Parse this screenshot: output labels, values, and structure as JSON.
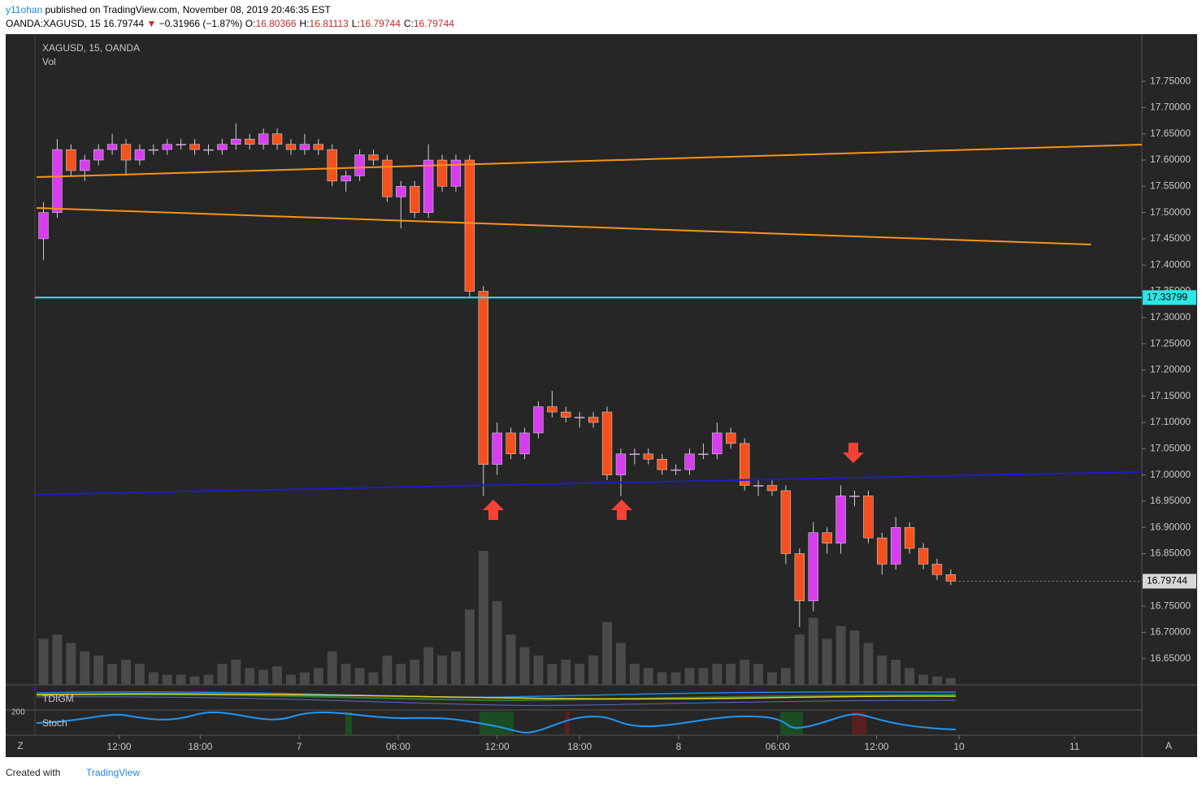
{
  "header": {
    "author": "y11ohan",
    "published": "published on TradingView.com, November 08, 2019 20:46:35 EST",
    "symbol": "OANDA:XAGUSD, 15",
    "last": "16.79744",
    "change": "−0.31966 (−1.87%)",
    "ohlc": [
      {
        "label": "O:",
        "value": "16.80366"
      },
      {
        "label": "H:",
        "value": "16.81113"
      },
      {
        "label": "L:",
        "value": "16.79744"
      },
      {
        "label": "C:",
        "value": "16.79744"
      }
    ]
  },
  "chart_data": {
    "type": "candlestick",
    "title": "XAGUSD, 15, OANDA",
    "volume_label": "Vol",
    "xlim": [
      -2.25,
      80.4
    ],
    "xticks": [
      {
        "value": 6,
        "label": "12:00"
      },
      {
        "value": 11.9,
        "label": "18:00"
      },
      {
        "value": 19.1,
        "label": "7"
      },
      {
        "value": 26.3,
        "label": "06:00"
      },
      {
        "value": 33.5,
        "label": "12:00"
      },
      {
        "value": 39.5,
        "label": "18:00"
      },
      {
        "value": 46.7,
        "label": "8"
      },
      {
        "value": 53.9,
        "label": "06:00"
      },
      {
        "value": 61.1,
        "label": "12:00"
      },
      {
        "value": 67.1,
        "label": "10"
      },
      {
        "value": 75.5,
        "label": "11"
      }
    ],
    "ylim": [
      16.6,
      17.84
    ],
    "yticks": [
      {
        "value": 16.65,
        "label": "16.65000"
      },
      {
        "value": 16.7,
        "label": "16.70000"
      },
      {
        "value": 16.75,
        "label": "16.75000"
      },
      {
        "value": 16.8,
        "label": "16.80000"
      },
      {
        "value": 16.85,
        "label": "16.85000"
      },
      {
        "value": 16.9,
        "label": "16.90000"
      },
      {
        "value": 16.95,
        "label": "16.95000"
      },
      {
        "value": 17.0,
        "label": "17.00000"
      },
      {
        "value": 17.05,
        "label": "17.05000"
      },
      {
        "value": 17.1,
        "label": "17.10000"
      },
      {
        "value": 17.15,
        "label": "17.15000"
      },
      {
        "value": 17.2,
        "label": "17.20000"
      },
      {
        "value": 17.25,
        "label": "17.25000"
      },
      {
        "value": 17.3,
        "label": "17.30000"
      },
      {
        "value": 17.35,
        "label": "17.35000"
      },
      {
        "value": 17.4,
        "label": "17.40000"
      },
      {
        "value": 17.45,
        "label": "17.45000"
      },
      {
        "value": 17.5,
        "label": "17.50000"
      },
      {
        "value": 17.55,
        "label": "17.55000"
      },
      {
        "value": 17.6,
        "label": "17.60000"
      },
      {
        "value": 17.65,
        "label": "17.65000"
      },
      {
        "value": 17.7,
        "label": "17.70000"
      },
      {
        "value": 17.75,
        "label": "17.75000"
      }
    ],
    "up_color": "#d63ef0",
    "down_color": "#f4511e",
    "open": [
      17.45,
      17.5,
      17.62,
      17.58,
      17.6,
      17.62,
      17.63,
      17.6,
      17.62,
      17.62,
      17.63,
      17.63,
      17.62,
      17.62,
      17.63,
      17.64,
      17.63,
      17.65,
      17.63,
      17.62,
      17.63,
      17.62,
      17.56,
      17.57,
      17.61,
      17.6,
      17.53,
      17.55,
      17.5,
      17.6,
      17.55,
      17.6,
      17.35,
      17.02,
      17.08,
      17.04,
      17.08,
      17.13,
      17.12,
      17.11,
      17.11,
      17.12,
      17.0,
      17.04,
      17.04,
      17.03,
      17.01,
      17.01,
      17.04,
      17.04,
      17.08,
      17.06,
      16.98,
      16.98,
      16.97,
      16.85,
      16.76,
      16.89,
      16.87,
      16.96,
      16.96,
      16.88,
      16.83,
      16.9,
      16.86,
      16.83,
      16.81
    ],
    "high": [
      17.52,
      17.64,
      17.63,
      17.61,
      17.63,
      17.65,
      17.64,
      17.63,
      17.63,
      17.64,
      17.64,
      17.64,
      17.63,
      17.64,
      17.67,
      17.65,
      17.66,
      17.66,
      17.64,
      17.65,
      17.64,
      17.63,
      17.58,
      17.62,
      17.62,
      17.61,
      17.56,
      17.56,
      17.63,
      17.61,
      17.61,
      17.61,
      17.36,
      17.1,
      17.09,
      17.09,
      17.14,
      17.16,
      17.13,
      17.12,
      17.12,
      17.13,
      17.05,
      17.05,
      17.05,
      17.04,
      17.02,
      17.05,
      17.06,
      17.1,
      17.09,
      17.07,
      16.99,
      16.99,
      16.98,
      16.86,
      16.91,
      16.9,
      16.98,
      16.97,
      16.97,
      16.89,
      16.92,
      16.91,
      16.87,
      16.84,
      16.82
    ],
    "low": [
      17.41,
      17.49,
      17.57,
      17.56,
      17.59,
      17.61,
      17.57,
      17.59,
      17.61,
      17.61,
      17.62,
      17.61,
      17.61,
      17.61,
      17.62,
      17.62,
      17.62,
      17.62,
      17.61,
      17.61,
      17.61,
      17.55,
      17.54,
      17.56,
      17.59,
      17.52,
      17.47,
      17.49,
      17.49,
      17.54,
      17.54,
      17.34,
      16.96,
      17.0,
      17.03,
      17.03,
      17.07,
      17.11,
      17.1,
      17.09,
      17.09,
      16.99,
      16.96,
      17.02,
      17.02,
      17.0,
      17.0,
      17.0,
      17.03,
      17.03,
      17.05,
      16.97,
      16.96,
      16.96,
      16.83,
      16.71,
      16.74,
      16.85,
      16.85,
      16.94,
      16.87,
      16.81,
      16.82,
      16.85,
      16.82,
      16.8,
      16.79
    ],
    "close": [
      17.5,
      17.62,
      17.58,
      17.6,
      17.62,
      17.63,
      17.6,
      17.62,
      17.62,
      17.63,
      17.63,
      17.62,
      17.62,
      17.63,
      17.64,
      17.63,
      17.65,
      17.63,
      17.62,
      17.63,
      17.62,
      17.56,
      17.57,
      17.61,
      17.6,
      17.53,
      17.55,
      17.5,
      17.6,
      17.55,
      17.6,
      17.35,
      17.02,
      17.08,
      17.04,
      17.08,
      17.13,
      17.12,
      17.11,
      17.11,
      17.1,
      17.0,
      17.04,
      17.04,
      17.03,
      17.01,
      17.01,
      17.04,
      17.04,
      17.08,
      17.06,
      16.98,
      16.98,
      16.97,
      16.85,
      16.76,
      16.89,
      16.87,
      16.96,
      16.96,
      16.88,
      16.83,
      16.9,
      16.86,
      16.83,
      16.81,
      16.79744
    ],
    "volume": [
      55,
      60,
      50,
      40,
      35,
      25,
      30,
      25,
      15,
      12,
      12,
      10,
      12,
      25,
      30,
      20,
      18,
      22,
      12,
      15,
      20,
      40,
      25,
      20,
      15,
      35,
      25,
      30,
      45,
      35,
      40,
      90,
      160,
      100,
      60,
      45,
      35,
      25,
      30,
      25,
      35,
      75,
      50,
      25,
      20,
      15,
      15,
      20,
      20,
      25,
      25,
      30,
      25,
      15,
      20,
      60,
      80,
      55,
      70,
      65,
      50,
      35,
      30,
      20,
      12,
      10,
      8
    ],
    "drawings": [
      {
        "color": "#f7941d",
        "x": [
          0,
          80.4
        ],
        "y": [
          17.5675,
          17.6294
        ]
      },
      {
        "color": "#f7941d",
        "x": [
          0,
          76.7
        ],
        "y": [
          17.5087,
          17.439
        ]
      },
      {
        "color": "#1c1cc8",
        "x": [
          0,
          80.4
        ],
        "y": [
          16.9626,
          17.0059
        ]
      }
    ],
    "hline": {
      "value": 17.33799,
      "color": "#2ee6e6"
    },
    "panes": [
      "TDIGM",
      "Stoch"
    ],
    "stoch_level": "200"
  },
  "footer": {
    "created": "Created with",
    "brand": "TradingView"
  },
  "corners": {
    "left": "Z",
    "right": "A"
  }
}
